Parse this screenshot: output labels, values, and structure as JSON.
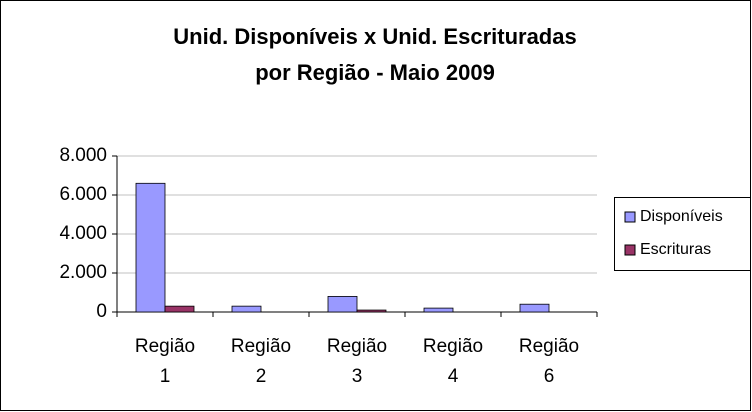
{
  "chart_data": {
    "type": "bar",
    "title": [
      "Unid. Disponíveis x Unid. Escrituradas",
      "por Região - Maio 2009"
    ],
    "categories": [
      "Região 1",
      "Região 2",
      "Região 3",
      "Região 4",
      "Região 6"
    ],
    "series": [
      {
        "name": "Disponíveis",
        "color": "#9999ff",
        "values": [
          6600,
          300,
          800,
          200,
          400
        ]
      },
      {
        "name": "Escrituras",
        "color": "#993366",
        "values": [
          300,
          0,
          100,
          0,
          0
        ]
      }
    ],
    "ylim": [
      0,
      8000
    ],
    "yticks": [
      0,
      {
        "value": 2000,
        "label": "2.000"
      },
      {
        "value": 4000,
        "label": "4.000"
      },
      {
        "value": 6000,
        "label": "6.000"
      },
      {
        "value": 8000,
        "label": "8.000"
      }
    ],
    "grid": true,
    "legend": "right"
  }
}
